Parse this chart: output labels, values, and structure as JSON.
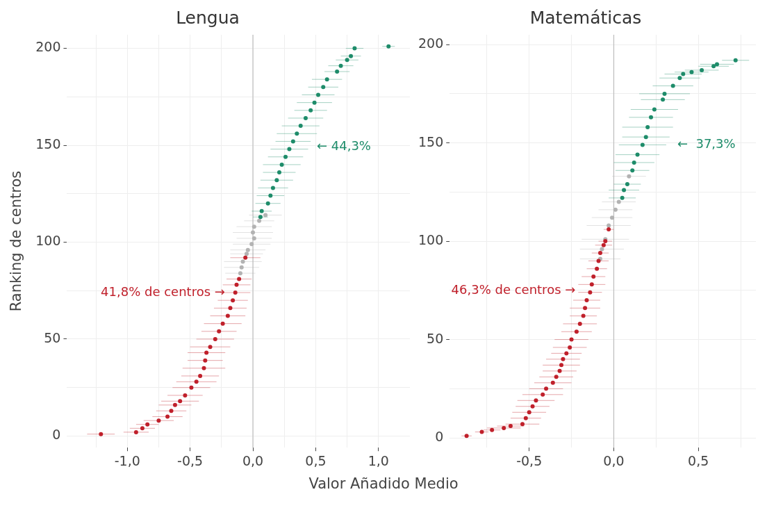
{
  "chart_data": [
    {
      "type": "scatter",
      "title": "Lengua",
      "xlabel": "Valor Añadido Medio",
      "ylabel": "Ranking de centros",
      "grid": true,
      "marker": "circle",
      "xlim": [
        -1.48,
        1.25
      ],
      "ylim": [
        -6,
        207
      ],
      "xticks": [
        {
          "value": -1.25,
          "label": null
        },
        {
          "value": -1,
          "label": "-1,0"
        },
        {
          "value": -0.75,
          "label": null
        },
        {
          "value": -0.5,
          "label": "-0,5"
        },
        {
          "value": -0.25,
          "label": null
        },
        {
          "value": 0,
          "label": "0,0"
        },
        {
          "value": 0.25,
          "label": null
        },
        {
          "value": 0.5,
          "label": "0,5"
        },
        {
          "value": 0.75,
          "label": null
        },
        {
          "value": 1,
          "label": "1,0"
        }
      ],
      "yticks": [
        0,
        {
          "value": 25,
          "label": null
        },
        50,
        {
          "value": 75,
          "label": null
        },
        100,
        {
          "value": 125,
          "label": null
        },
        150,
        {
          "value": 175,
          "label": null
        },
        200
      ],
      "ref_lines": [
        {
          "axis": "x",
          "value": 0,
          "color": "#bdbdbd"
        }
      ],
      "annotations": [
        {
          "text": "41,8% de centros →",
          "x": -0.2,
          "y": 74
        },
        {
          "text": "← 44,3%",
          "x": 0.42,
          "y": 149
        }
      ],
      "series": [
        {
          "color": "#c0202b",
          "x": [
            -1.21,
            -0.93,
            -0.88,
            -0.84,
            -0.75,
            -0.68,
            -0.65,
            -0.62,
            -0.58,
            -0.54,
            -0.49,
            -0.45,
            -0.42,
            -0.39,
            -0.38,
            -0.37,
            -0.34,
            -0.3,
            -0.27,
            -0.24,
            -0.2,
            -0.18,
            -0.16,
            -0.14,
            -0.13,
            -0.11,
            -0.06
          ],
          "values": [
            1,
            2,
            4,
            6,
            8,
            10,
            13,
            16,
            18,
            21,
            25,
            28,
            31,
            35,
            39,
            43,
            46,
            50,
            54,
            58,
            62,
            66,
            70,
            74,
            78,
            81,
            92
          ],
          "xerrors": [
            0.11,
            0.1,
            0.1,
            0.09,
            0.12,
            0.12,
            0.12,
            0.13,
            0.15,
            0.14,
            0.15,
            0.16,
            0.15,
            0.17,
            0.14,
            0.15,
            0.16,
            0.15,
            0.14,
            0.15,
            0.14,
            0.13,
            0.12,
            0.12,
            0.11,
            0.1,
            0.12
          ]
        },
        {
          "color": "#b3b3b3",
          "x": [
            -0.1,
            -0.09,
            -0.08,
            -0.05,
            -0.04,
            -0.01,
            0.01,
            0.0,
            0.01,
            0.05,
            0.1
          ],
          "values": [
            84,
            87,
            90,
            94,
            96,
            99,
            102,
            105,
            108,
            111,
            114
          ],
          "xerrors": [
            0.12,
            0.14,
            0.15,
            0.13,
            0.14,
            0.15,
            0.14,
            0.16,
            0.14,
            0.12,
            0.13
          ]
        },
        {
          "color": "#1e8c6a",
          "x": [
            0.06,
            0.07,
            0.12,
            0.14,
            0.16,
            0.19,
            0.21,
            0.23,
            0.26,
            0.29,
            0.32,
            0.35,
            0.38,
            0.42,
            0.46,
            0.49,
            0.52,
            0.56,
            0.59,
            0.67,
            0.7,
            0.75,
            0.78,
            0.81,
            1.08
          ],
          "values": [
            113,
            116,
            120,
            124,
            128,
            132,
            136,
            140,
            144,
            148,
            152,
            156,
            160,
            164,
            168,
            172,
            176,
            180,
            184,
            188,
            191,
            194,
            196,
            200,
            201
          ],
          "xerrors": [
            0.06,
            0.08,
            0.1,
            0.11,
            0.12,
            0.13,
            0.13,
            0.15,
            0.14,
            0.15,
            0.14,
            0.16,
            0.15,
            0.14,
            0.13,
            0.14,
            0.13,
            0.12,
            0.12,
            0.1,
            0.1,
            0.09,
            0.08,
            0.07,
            0.05
          ]
        }
      ]
    },
    {
      "type": "scatter",
      "title": "Matemáticas",
      "grid": true,
      "marker": "circle",
      "xlim": [
        -0.97,
        0.84
      ],
      "ylim": [
        -5,
        205
      ],
      "xticks": [
        {
          "value": -0.75,
          "label": null
        },
        {
          "value": -0.5,
          "label": "-0,5"
        },
        {
          "value": -0.25,
          "label": null
        },
        {
          "value": 0,
          "label": "0,0"
        },
        {
          "value": 0.25,
          "label": null
        },
        {
          "value": 0.5,
          "label": "0,5"
        },
        {
          "value": 0.75,
          "label": null
        }
      ],
      "yticks": [
        0,
        {
          "value": 25,
          "label": null
        },
        50,
        {
          "value": 75,
          "label": null
        },
        100,
        {
          "value": 125,
          "label": null
        },
        150,
        {
          "value": 175,
          "label": null
        },
        200
      ],
      "ref_lines": [
        {
          "axis": "x",
          "value": 0,
          "color": "#bdbdbd"
        }
      ],
      "annotations": [
        {
          "text": "46,3% de centros →",
          "x": -0.21,
          "y": 75
        },
        {
          "text": "←  37,3%",
          "x": 0.31,
          "y": 149
        }
      ],
      "series": [
        {
          "color": "#c0202b",
          "x": [
            -0.87,
            -0.78,
            -0.72,
            -0.65,
            -0.61,
            -0.54,
            -0.52,
            -0.5,
            -0.48,
            -0.46,
            -0.42,
            -0.4,
            -0.36,
            -0.34,
            -0.32,
            -0.31,
            -0.3,
            -0.28,
            -0.26,
            -0.25,
            -0.22,
            -0.2,
            -0.18,
            -0.17,
            -0.16,
            -0.14,
            -0.13,
            -0.12,
            -0.1,
            -0.09,
            -0.08,
            -0.06,
            -0.05,
            -0.03
          ],
          "values": [
            1,
            3,
            4,
            5,
            6,
            7,
            10,
            13,
            16,
            19,
            22,
            25,
            28,
            31,
            34,
            37,
            40,
            43,
            46,
            50,
            54,
            58,
            62,
            66,
            70,
            74,
            78,
            82,
            86,
            90,
            94,
            98,
            100,
            106
          ],
          "xerrors": [
            0.03,
            0.04,
            0.05,
            0.1,
            0.08,
            0.1,
            0.09,
            0.1,
            0.1,
            0.11,
            0.12,
            0.1,
            0.11,
            0.1,
            0.1,
            0.11,
            0.1,
            0.09,
            0.1,
            0.1,
            0.09,
            0.1,
            0.08,
            0.09,
            0.08,
            0.07,
            0.08,
            0.07,
            0.06,
            0.06,
            0.05,
            0.05,
            0.04,
            0.03
          ]
        },
        {
          "color": "#b3b3b3",
          "x": [
            -0.08,
            -0.07,
            -0.05,
            -0.03,
            -0.01,
            0.01,
            0.03,
            0.09
          ],
          "values": [
            91,
            96,
            101,
            108,
            112,
            116,
            120,
            133
          ],
          "xerrors": [
            0.12,
            0.13,
            0.14,
            0.13,
            0.12,
            0.1,
            0.1,
            0.1
          ]
        },
        {
          "color": "#1e8c6a",
          "x": [
            0.05,
            0.06,
            0.08,
            0.11,
            0.12,
            0.14,
            0.17,
            0.19,
            0.2,
            0.22,
            0.24,
            0.29,
            0.3,
            0.35,
            0.39,
            0.41,
            0.46,
            0.52,
            0.59,
            0.61,
            0.72
          ],
          "values": [
            122,
            126,
            129,
            136,
            140,
            144,
            149,
            153,
            158,
            163,
            167,
            172,
            175,
            179,
            183,
            185,
            186,
            187,
            189,
            190,
            192
          ],
          "xerrors": [
            0.08,
            0.09,
            0.08,
            0.1,
            0.12,
            0.13,
            0.14,
            0.14,
            0.15,
            0.13,
            0.14,
            0.13,
            0.15,
            0.12,
            0.12,
            0.11,
            0.1,
            0.1,
            0.09,
            0.1,
            0.08
          ]
        }
      ]
    }
  ]
}
